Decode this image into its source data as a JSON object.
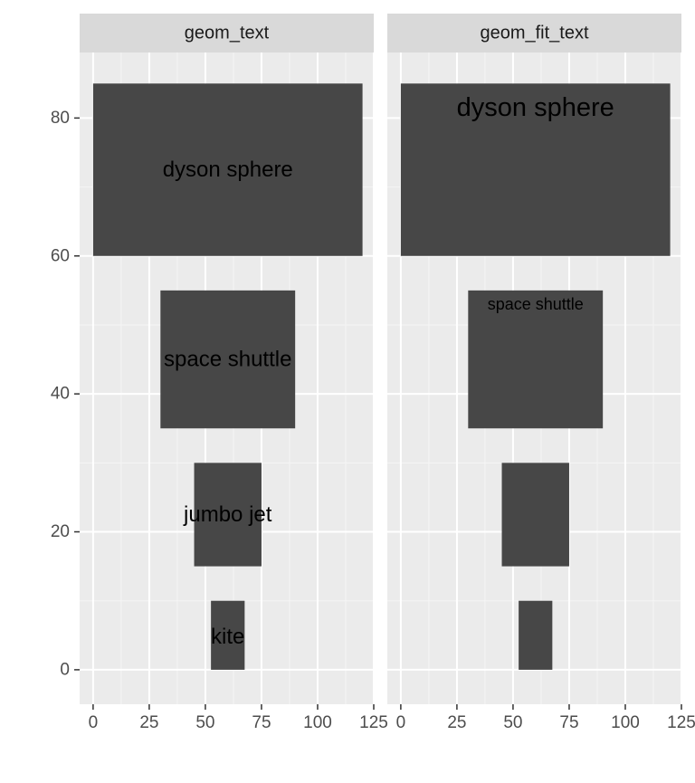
{
  "chart_data": {
    "type": "bar",
    "x_range": [
      -6,
      125
    ],
    "y_range": [
      -5,
      89.5
    ],
    "x_ticks": [
      0,
      25,
      50,
      75,
      100,
      125
    ],
    "y_ticks": [
      0,
      20,
      40,
      60,
      80
    ],
    "x_tick_labels": [
      "0",
      "25",
      "50",
      "75",
      "100",
      "125"
    ],
    "y_tick_labels": [
      "0",
      "20",
      "40",
      "60",
      "80"
    ],
    "grid": true,
    "rects": [
      {
        "label": "kite",
        "xmin": 52.5,
        "xmax": 67.5,
        "ymin": 0,
        "ymax": 10
      },
      {
        "label": "jumbo jet",
        "xmin": 45,
        "xmax": 75,
        "ymin": 15,
        "ymax": 30
      },
      {
        "label": "space shuttle",
        "xmin": 30,
        "xmax": 90,
        "ymin": 35,
        "ymax": 55
      },
      {
        "label": "dyson sphere",
        "xmin": 0,
        "xmax": 120,
        "ymin": 60,
        "ymax": 85
      }
    ],
    "panels": [
      {
        "strip": "geom_text",
        "labels": [
          {
            "text": "kite",
            "x": 60,
            "y": 4.8,
            "size": 24
          },
          {
            "text": "jumbo jet",
            "x": 60,
            "y": 22.5,
            "size": 24
          },
          {
            "text": "space shuttle",
            "x": 60,
            "y": 45,
            "size": 24
          },
          {
            "text": "dyson sphere",
            "x": 60,
            "y": 72.5,
            "size": 24
          }
        ]
      },
      {
        "strip": "geom_fit_text",
        "labels": [
          {
            "text": "dyson sphere",
            "x": 60,
            "y": 81.5,
            "size": 29
          },
          {
            "text": "space shuttle",
            "x": 60,
            "y": 53,
            "size": 18
          }
        ]
      }
    ]
  },
  "colors": {
    "panel_bg": "#ebebeb",
    "grid_major": "#ffffff",
    "grid_minor": "#f5f5f5",
    "strip_bg": "#d9d9d9",
    "rect_fill": "#474747",
    "axis_ticks": "#333333"
  }
}
